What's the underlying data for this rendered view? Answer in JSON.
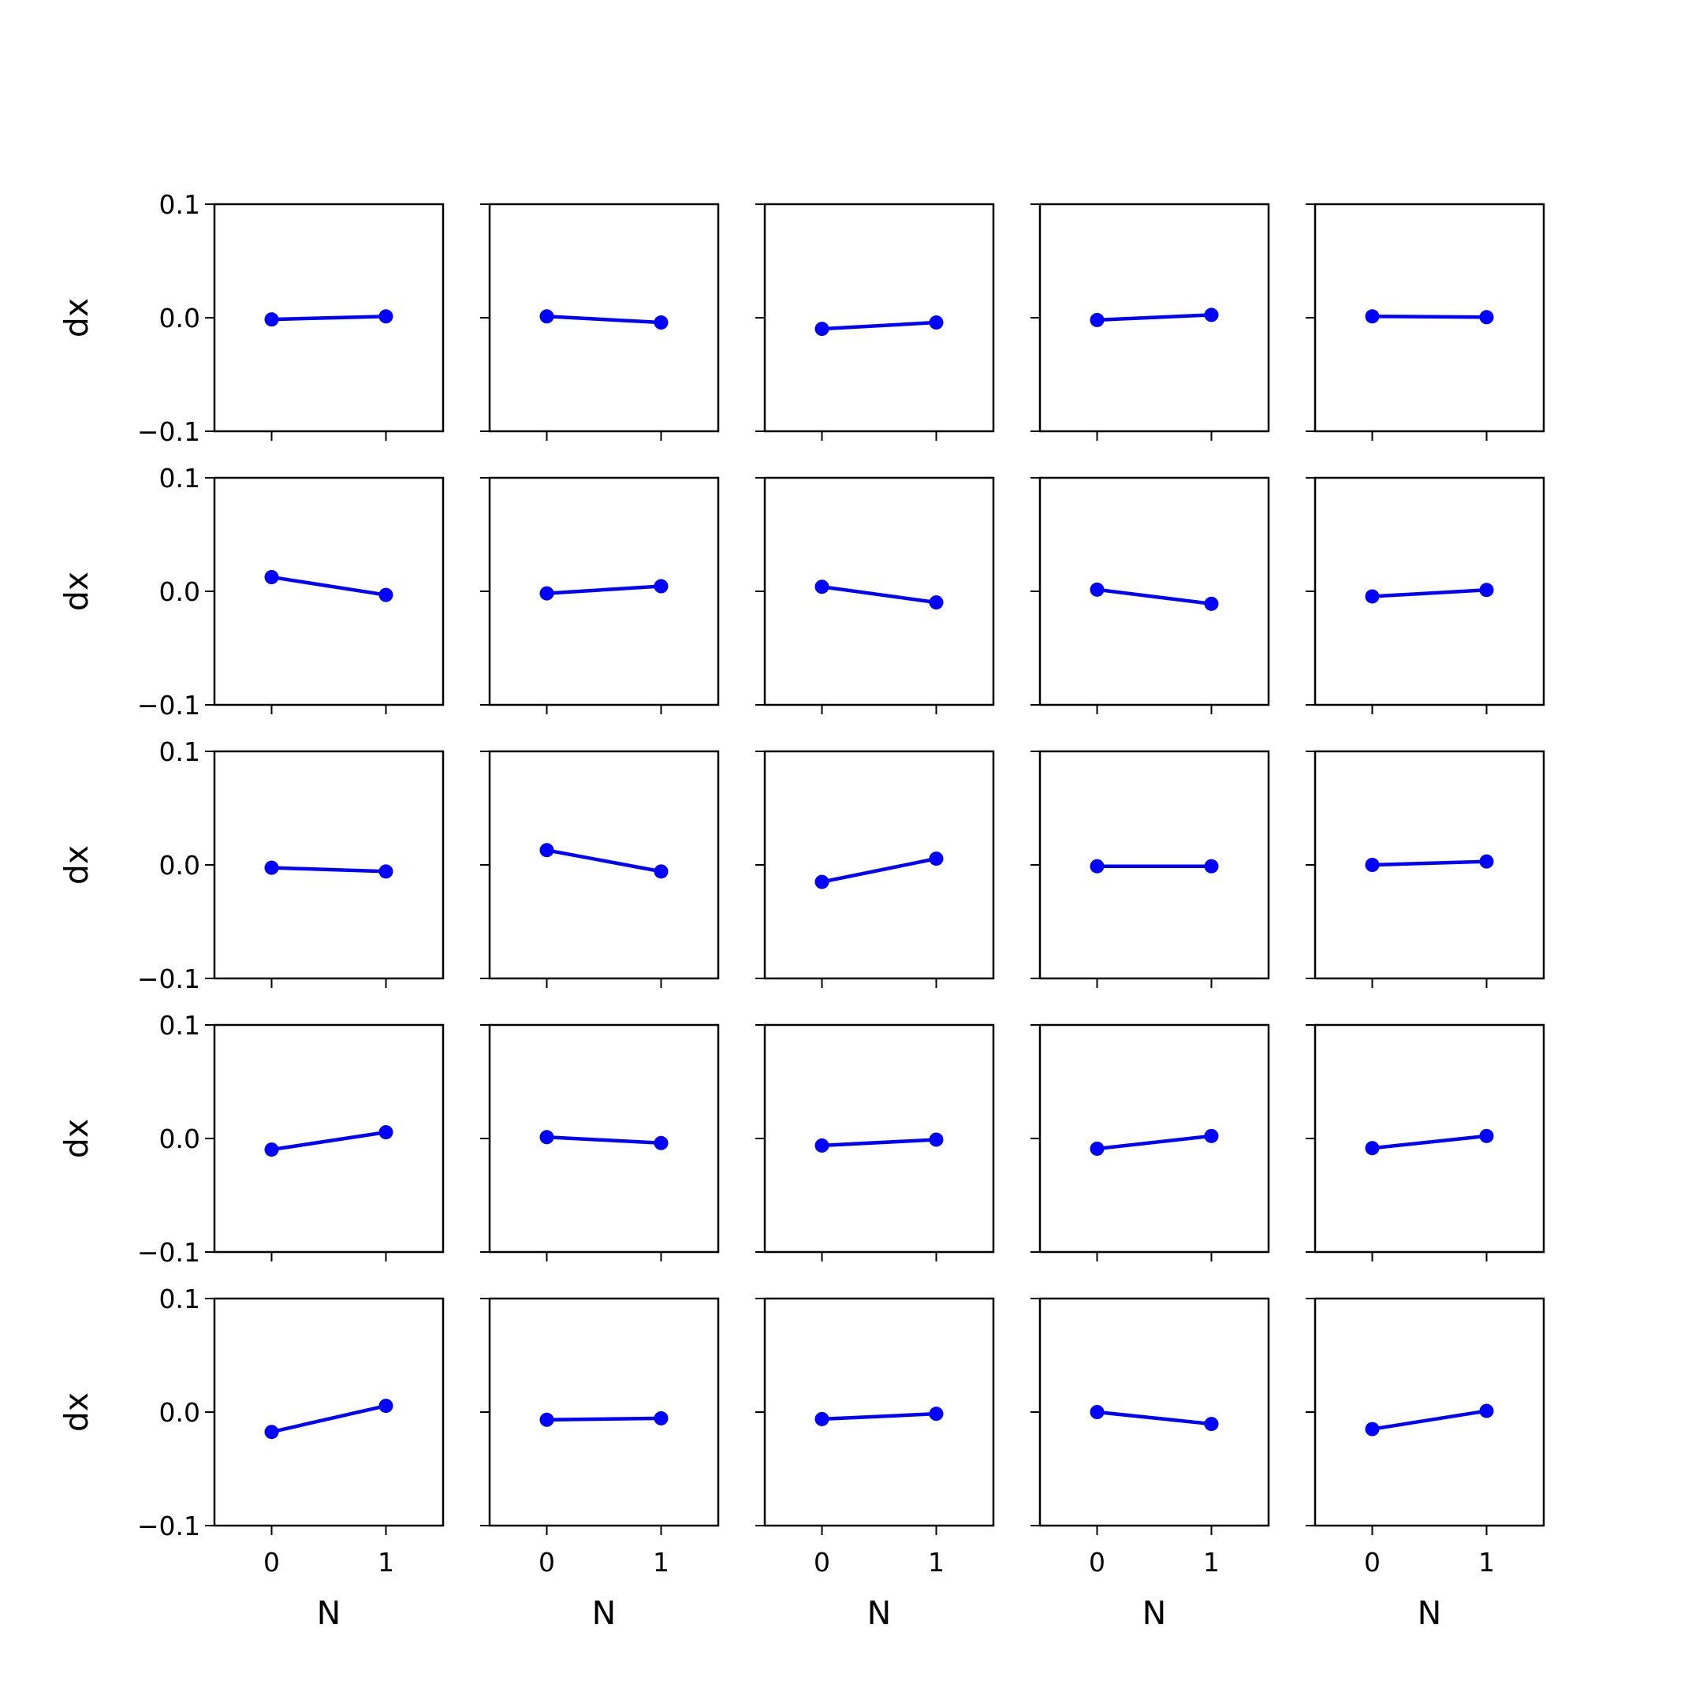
{
  "chart_data": {
    "type": "line",
    "layout": "5x5 grid of subplots",
    "xlabel": "N",
    "ylabel": "dx",
    "xticks": [
      0,
      1
    ],
    "yticks": [
      -0.1,
      0.0,
      0.1
    ],
    "ytick_labels": [
      "−0.1",
      "0.0",
      "0.1"
    ],
    "xtick_labels": [
      "0",
      "1"
    ],
    "xlim": [
      -0.5,
      1.5
    ],
    "ylim": [
      -0.1,
      0.1
    ],
    "color": "#0000ff",
    "marker": "circle",
    "grid": false,
    "shared_axes": true,
    "subplots": [
      [
        [
          0,
          -0.0015
        ],
        [
          1,
          0.0012
        ]
      ],
      [
        [
          0,
          0.0012
        ],
        [
          1,
          -0.0042
        ]
      ],
      [
        [
          0,
          -0.0098
        ],
        [
          1,
          -0.0042
        ]
      ],
      [
        [
          0,
          -0.002
        ],
        [
          1,
          0.0025
        ]
      ],
      [
        [
          0,
          0.0012
        ],
        [
          1,
          0.0005
        ]
      ],
      [
        [
          0,
          0.0125
        ],
        [
          1,
          -0.0032
        ]
      ],
      [
        [
          0,
          -0.0018
        ],
        [
          1,
          0.0045
        ]
      ],
      [
        [
          0,
          0.004
        ],
        [
          1,
          -0.0098
        ]
      ],
      [
        [
          0,
          0.0015
        ],
        [
          1,
          -0.011
        ]
      ],
      [
        [
          0,
          -0.0045
        ],
        [
          1,
          0.0012
        ]
      ],
      [
        [
          0,
          -0.0025
        ],
        [
          1,
          -0.0058
        ]
      ],
      [
        [
          0,
          0.013
        ],
        [
          1,
          -0.0058
        ]
      ],
      [
        [
          0,
          -0.015
        ],
        [
          1,
          0.0055
        ]
      ],
      [
        [
          0,
          -0.0012
        ],
        [
          1,
          -0.0012
        ]
      ],
      [
        [
          0,
          0.0
        ],
        [
          1,
          0.003
        ]
      ],
      [
        [
          0,
          -0.0098
        ],
        [
          1,
          0.0055
        ]
      ],
      [
        [
          0,
          0.0012
        ],
        [
          1,
          -0.004
        ]
      ],
      [
        [
          0,
          -0.0062
        ],
        [
          1,
          -0.001
        ]
      ],
      [
        [
          0,
          -0.009
        ],
        [
          1,
          0.0022
        ]
      ],
      [
        [
          0,
          -0.0085
        ],
        [
          1,
          0.0022
        ]
      ],
      [
        [
          0,
          -0.0175
        ],
        [
          1,
          0.0055
        ]
      ],
      [
        [
          0,
          -0.0068
        ],
        [
          1,
          -0.0055
        ]
      ],
      [
        [
          0,
          -0.0062
        ],
        [
          1,
          -0.0015
        ]
      ],
      [
        [
          0,
          0.0
        ],
        [
          1,
          -0.0105
        ]
      ],
      [
        [
          0,
          -0.015
        ],
        [
          1,
          0.001
        ]
      ]
    ]
  }
}
